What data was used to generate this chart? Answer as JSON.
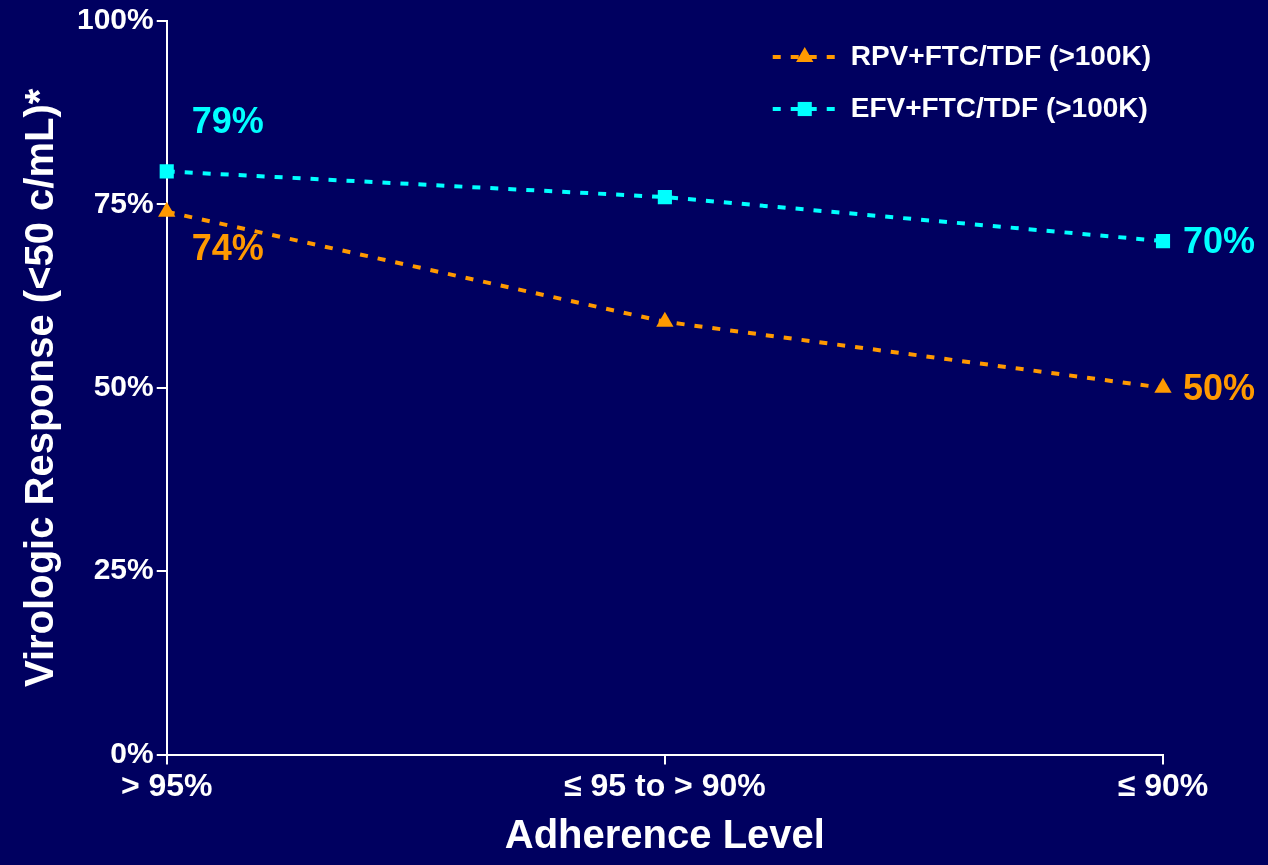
{
  "chart_data": {
    "type": "line",
    "xlabel": "Adherence Level",
    "ylabel": "Virologic Response (<50 c/mL)*",
    "categories": [
      "> 95%",
      "≤ 95 to > 90%",
      "≤ 90%"
    ],
    "series": [
      {
        "name": "RPV+FTC/TDF (>100K)",
        "color": "#ff9900",
        "marker": "triangle",
        "values": [
          74,
          59,
          50
        ],
        "value_labels": [
          "74%",
          null,
          "50%"
        ]
      },
      {
        "name": "EFV+FTC/TDF (>100K)",
        "color": "#00ffff",
        "marker": "square",
        "values": [
          79.5,
          76,
          70
        ],
        "value_labels": [
          "79%",
          null,
          "70%"
        ]
      }
    ],
    "ylim": [
      0,
      100
    ],
    "yticks": [
      {
        "value": 0,
        "label": "0%"
      },
      {
        "value": 25,
        "label": "25%"
      },
      {
        "value": 50,
        "label": "50%"
      },
      {
        "value": 75,
        "label": "75%"
      },
      {
        "value": 100,
        "label": "100%"
      }
    ],
    "grid": false,
    "legend": "top right",
    "line_style": "dashed"
  }
}
